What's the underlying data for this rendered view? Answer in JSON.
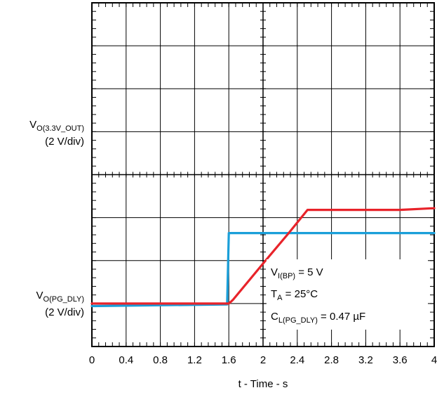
{
  "chart_data": {
    "type": "line",
    "xlabel": "t - Time - s",
    "xlim": [
      0,
      4
    ],
    "x_ticks": [
      "0",
      "0.4",
      "0.8",
      "1.2",
      "1.6",
      "2",
      "2.4",
      "2.8",
      "3.2",
      "3.6",
      "4"
    ],
    "grid": true,
    "divisions": {
      "x": 10,
      "y": 8
    },
    "series": [
      {
        "label_main": "V",
        "label_sub": "O(3.3V_OUT)",
        "scale": "(2 V/div)",
        "color": "#1a9fd9",
        "divs": [
          [
            0,
            0.94
          ],
          [
            1.58,
            0.98
          ],
          [
            1.6,
            2.64
          ],
          [
            4,
            2.64
          ]
        ]
      },
      {
        "label_main": "V",
        "label_sub": "O(PG_DLY)",
        "scale": "(2 V/div)",
        "color": "#e8232a",
        "divs": [
          [
            0,
            1.0
          ],
          [
            1.6,
            1.0
          ],
          [
            1.65,
            1.09
          ],
          [
            2.0,
            1.93
          ],
          [
            2.3,
            2.64
          ],
          [
            2.52,
            3.18
          ],
          [
            3.6,
            3.18
          ],
          [
            4,
            3.22
          ]
        ]
      }
    ],
    "annotations": [
      {
        "main": "V",
        "sub": "I(BP)",
        "tail": " = 5 V"
      },
      {
        "main": "T",
        "sub": "A",
        "tail": " = 25°C"
      },
      {
        "main": "C",
        "sub": "L(PG_DLY)",
        "tail": " = 0.47 µF"
      }
    ]
  }
}
